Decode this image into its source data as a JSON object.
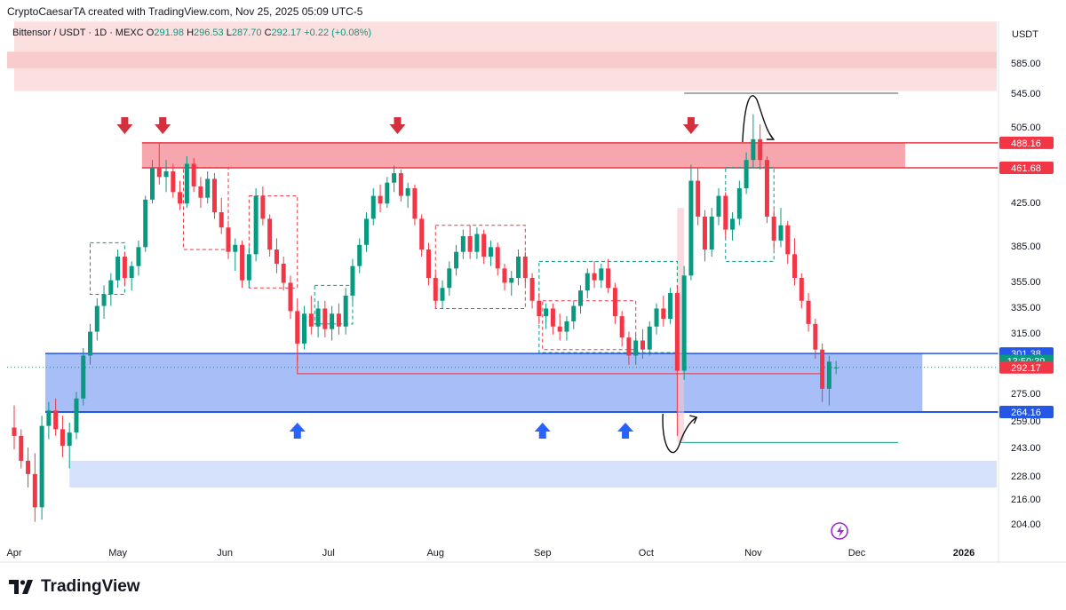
{
  "header": {
    "attribution": "CryptoCaesarTA created with TradingView.com, Nov 25, 2025 05:09 UTC-5"
  },
  "symbol_bar": {
    "title": "Bittensor / USDT · 1D · MEXC",
    "o_label": "O",
    "o_value": "291.98",
    "h_label": "H",
    "h_value": "296.53",
    "l_label": "L",
    "l_value": "287.70",
    "c_label": "C",
    "c_value": "292.17",
    "change": "+0.22 (+0.08%)"
  },
  "footer": {
    "brand": "TradingView"
  },
  "colors": {
    "up": "#089981",
    "down": "#f23645",
    "resistance_fill": "#f7a6ad",
    "support_fill": "#a7bef7",
    "arrow_down": "#d32f3d",
    "arrow_up": "#2962ff"
  },
  "chart_data": {
    "type": "candlestick",
    "currency": "USDT",
    "y_ticks": [
      "585.00",
      "545.00",
      "505.00",
      "425.00",
      "385.00",
      "355.00",
      "335.00",
      "315.00",
      "275.00",
      "259.00",
      "243.00",
      "228.00",
      "216.00",
      "204.00"
    ],
    "y_tick_values": [
      585,
      545,
      505,
      425,
      385,
      355,
      335,
      315,
      275,
      259,
      243,
      228,
      216,
      204
    ],
    "x_ticks": [
      "Apr",
      "May",
      "Jun",
      "Jul",
      "Aug",
      "Sep",
      "Oct",
      "Nov",
      "Dec",
      "2026"
    ],
    "x_tick_dates": [
      "2025-04-01",
      "2025-05-01",
      "2025-06-01",
      "2025-07-01",
      "2025-08-01",
      "2025-09-01",
      "2025-10-01",
      "2025-11-01",
      "2025-12-01",
      "2026-01-01"
    ],
    "price_labels": [
      {
        "text": "488.16",
        "value": 488.16,
        "kind": "resistance-top"
      },
      {
        "text": "461.68",
        "value": 461.68,
        "kind": "resistance-bottom"
      },
      {
        "text": "301.38",
        "value": 301.38,
        "kind": "support-top"
      },
      {
        "text": "13:50:39",
        "value": 296.4,
        "kind": "countdown"
      },
      {
        "text": "292.17",
        "value": 292.17,
        "kind": "last-price"
      },
      {
        "text": "264.16",
        "value": 264.16,
        "kind": "support-bottom"
      }
    ],
    "zones": [
      {
        "name": "resistance",
        "top": 488.16,
        "bottom": 461.68,
        "from": "2025-05-08",
        "to": "2025-12-15"
      },
      {
        "name": "support",
        "top": 301.38,
        "bottom": 264.16,
        "from": "2025-04-10",
        "to": "2025-12-20"
      },
      {
        "name": "lower-support",
        "top": 236,
        "bottom": 222,
        "from": "2025-04-17",
        "to": "2026-01-12"
      },
      {
        "name": "upper-supply",
        "top": 640,
        "bottom": 548,
        "from": "2025-04-01",
        "to": "2026-01-12"
      }
    ],
    "resistance_arrow_dates": [
      "2025-05-03",
      "2025-05-14",
      "2025-07-21",
      "2025-10-14"
    ],
    "support_arrow_dates": [
      "2025-06-22",
      "2025-09-01",
      "2025-09-25"
    ],
    "last_close": 292.17,
    "candles": [
      {
        "date": "2025-04-01",
        "o": 255,
        "h": 268,
        "l": 242,
        "c": 250
      },
      {
        "date": "2025-04-03",
        "o": 250,
        "h": 254,
        "l": 232,
        "c": 236
      },
      {
        "date": "2025-04-05",
        "o": 236,
        "h": 243,
        "l": 222,
        "c": 229
      },
      {
        "date": "2025-04-07",
        "o": 229,
        "h": 240,
        "l": 205,
        "c": 212
      },
      {
        "date": "2025-04-09",
        "o": 212,
        "h": 262,
        "l": 206,
        "c": 256
      },
      {
        "date": "2025-04-11",
        "o": 256,
        "h": 270,
        "l": 248,
        "c": 265
      },
      {
        "date": "2025-04-13",
        "o": 265,
        "h": 272,
        "l": 250,
        "c": 254
      },
      {
        "date": "2025-04-15",
        "o": 254,
        "h": 262,
        "l": 238,
        "c": 244
      },
      {
        "date": "2025-04-17",
        "o": 244,
        "h": 258,
        "l": 232,
        "c": 252
      },
      {
        "date": "2025-04-19",
        "o": 252,
        "h": 276,
        "l": 248,
        "c": 272
      },
      {
        "date": "2025-04-21",
        "o": 272,
        "h": 305,
        "l": 268,
        "c": 300
      },
      {
        "date": "2025-04-23",
        "o": 300,
        "h": 322,
        "l": 294,
        "c": 316
      },
      {
        "date": "2025-04-25",
        "o": 316,
        "h": 342,
        "l": 310,
        "c": 336
      },
      {
        "date": "2025-04-27",
        "o": 336,
        "h": 352,
        "l": 326,
        "c": 345
      },
      {
        "date": "2025-04-29",
        "o": 345,
        "h": 362,
        "l": 336,
        "c": 356
      },
      {
        "date": "2025-05-01",
        "o": 356,
        "h": 382,
        "l": 350,
        "c": 376
      },
      {
        "date": "2025-05-03",
        "o": 376,
        "h": 380,
        "l": 352,
        "c": 358
      },
      {
        "date": "2025-05-05",
        "o": 358,
        "h": 372,
        "l": 348,
        "c": 368
      },
      {
        "date": "2025-05-07",
        "o": 368,
        "h": 390,
        "l": 360,
        "c": 384
      },
      {
        "date": "2025-05-09",
        "o": 384,
        "h": 432,
        "l": 380,
        "c": 428
      },
      {
        "date": "2025-05-11",
        "o": 428,
        "h": 470,
        "l": 424,
        "c": 462
      },
      {
        "date": "2025-05-13",
        "o": 462,
        "h": 488,
        "l": 444,
        "c": 452
      },
      {
        "date": "2025-05-15",
        "o": 452,
        "h": 470,
        "l": 436,
        "c": 458
      },
      {
        "date": "2025-05-17",
        "o": 458,
        "h": 466,
        "l": 430,
        "c": 436
      },
      {
        "date": "2025-05-19",
        "o": 436,
        "h": 448,
        "l": 418,
        "c": 424
      },
      {
        "date": "2025-05-21",
        "o": 424,
        "h": 474,
        "l": 420,
        "c": 466
      },
      {
        "date": "2025-05-23",
        "o": 466,
        "h": 472,
        "l": 436,
        "c": 442
      },
      {
        "date": "2025-05-25",
        "o": 442,
        "h": 452,
        "l": 420,
        "c": 430
      },
      {
        "date": "2025-05-27",
        "o": 430,
        "h": 458,
        "l": 424,
        "c": 450
      },
      {
        "date": "2025-05-29",
        "o": 450,
        "h": 456,
        "l": 410,
        "c": 416
      },
      {
        "date": "2025-05-31",
        "o": 416,
        "h": 430,
        "l": 396,
        "c": 402
      },
      {
        "date": "2025-06-02",
        "o": 402,
        "h": 408,
        "l": 374,
        "c": 380
      },
      {
        "date": "2025-06-04",
        "o": 380,
        "h": 392,
        "l": 364,
        "c": 386
      },
      {
        "date": "2025-06-06",
        "o": 386,
        "h": 390,
        "l": 350,
        "c": 356
      },
      {
        "date": "2025-06-08",
        "o": 356,
        "h": 384,
        "l": 350,
        "c": 378
      },
      {
        "date": "2025-06-10",
        "o": 378,
        "h": 440,
        "l": 372,
        "c": 432
      },
      {
        "date": "2025-06-12",
        "o": 432,
        "h": 442,
        "l": 404,
        "c": 410
      },
      {
        "date": "2025-06-14",
        "o": 410,
        "h": 414,
        "l": 376,
        "c": 382
      },
      {
        "date": "2025-06-16",
        "o": 382,
        "h": 392,
        "l": 362,
        "c": 370
      },
      {
        "date": "2025-06-18",
        "o": 370,
        "h": 376,
        "l": 348,
        "c": 354
      },
      {
        "date": "2025-06-20",
        "o": 354,
        "h": 360,
        "l": 326,
        "c": 332
      },
      {
        "date": "2025-06-22",
        "o": 332,
        "h": 342,
        "l": 296,
        "c": 308
      },
      {
        "date": "2025-06-24",
        "o": 308,
        "h": 336,
        "l": 304,
        "c": 330
      },
      {
        "date": "2025-06-26",
        "o": 330,
        "h": 344,
        "l": 314,
        "c": 320
      },
      {
        "date": "2025-06-28",
        "o": 320,
        "h": 340,
        "l": 312,
        "c": 334
      },
      {
        "date": "2025-06-30",
        "o": 334,
        "h": 340,
        "l": 312,
        "c": 318
      },
      {
        "date": "2025-07-02",
        "o": 318,
        "h": 336,
        "l": 310,
        "c": 330
      },
      {
        "date": "2025-07-04",
        "o": 330,
        "h": 338,
        "l": 314,
        "c": 320
      },
      {
        "date": "2025-07-06",
        "o": 320,
        "h": 350,
        "l": 314,
        "c": 344
      },
      {
        "date": "2025-07-08",
        "o": 344,
        "h": 374,
        "l": 338,
        "c": 368
      },
      {
        "date": "2025-07-10",
        "o": 368,
        "h": 392,
        "l": 362,
        "c": 386
      },
      {
        "date": "2025-07-12",
        "o": 386,
        "h": 416,
        "l": 380,
        "c": 410
      },
      {
        "date": "2025-07-14",
        "o": 410,
        "h": 440,
        "l": 404,
        "c": 432
      },
      {
        "date": "2025-07-16",
        "o": 432,
        "h": 444,
        "l": 416,
        "c": 424
      },
      {
        "date": "2025-07-18",
        "o": 424,
        "h": 452,
        "l": 420,
        "c": 446
      },
      {
        "date": "2025-07-20",
        "o": 446,
        "h": 464,
        "l": 436,
        "c": 456
      },
      {
        "date": "2025-07-22",
        "o": 456,
        "h": 460,
        "l": 426,
        "c": 432
      },
      {
        "date": "2025-07-24",
        "o": 432,
        "h": 446,
        "l": 420,
        "c": 440
      },
      {
        "date": "2025-07-26",
        "o": 440,
        "h": 444,
        "l": 404,
        "c": 410
      },
      {
        "date": "2025-07-28",
        "o": 410,
        "h": 414,
        "l": 376,
        "c": 382
      },
      {
        "date": "2025-07-30",
        "o": 382,
        "h": 388,
        "l": 352,
        "c": 358
      },
      {
        "date": "2025-08-01",
        "o": 358,
        "h": 362,
        "l": 334,
        "c": 340
      },
      {
        "date": "2025-08-03",
        "o": 340,
        "h": 356,
        "l": 334,
        "c": 350
      },
      {
        "date": "2025-08-05",
        "o": 350,
        "h": 372,
        "l": 344,
        "c": 366
      },
      {
        "date": "2025-08-07",
        "o": 366,
        "h": 386,
        "l": 360,
        "c": 380
      },
      {
        "date": "2025-08-09",
        "o": 380,
        "h": 400,
        "l": 374,
        "c": 394
      },
      {
        "date": "2025-08-11",
        "o": 394,
        "h": 404,
        "l": 374,
        "c": 380
      },
      {
        "date": "2025-08-13",
        "o": 380,
        "h": 402,
        "l": 374,
        "c": 396
      },
      {
        "date": "2025-08-15",
        "o": 396,
        "h": 400,
        "l": 370,
        "c": 376
      },
      {
        "date": "2025-08-17",
        "o": 376,
        "h": 390,
        "l": 368,
        "c": 384
      },
      {
        "date": "2025-08-19",
        "o": 384,
        "h": 388,
        "l": 360,
        "c": 366
      },
      {
        "date": "2025-08-21",
        "o": 366,
        "h": 370,
        "l": 348,
        "c": 354
      },
      {
        "date": "2025-08-23",
        "o": 354,
        "h": 364,
        "l": 344,
        "c": 358
      },
      {
        "date": "2025-08-25",
        "o": 358,
        "h": 382,
        "l": 352,
        "c": 376
      },
      {
        "date": "2025-08-27",
        "o": 376,
        "h": 380,
        "l": 352,
        "c": 358
      },
      {
        "date": "2025-08-29",
        "o": 358,
        "h": 362,
        "l": 334,
        "c": 340
      },
      {
        "date": "2025-08-31",
        "o": 340,
        "h": 346,
        "l": 322,
        "c": 328
      },
      {
        "date": "2025-09-02",
        "o": 328,
        "h": 338,
        "l": 318,
        "c": 334
      },
      {
        "date": "2025-09-04",
        "o": 334,
        "h": 338,
        "l": 314,
        "c": 320
      },
      {
        "date": "2025-09-06",
        "o": 320,
        "h": 330,
        "l": 310,
        "c": 316
      },
      {
        "date": "2025-09-08",
        "o": 316,
        "h": 328,
        "l": 310,
        "c": 324
      },
      {
        "date": "2025-09-10",
        "o": 324,
        "h": 340,
        "l": 318,
        "c": 336
      },
      {
        "date": "2025-09-12",
        "o": 336,
        "h": 352,
        "l": 330,
        "c": 348
      },
      {
        "date": "2025-09-14",
        "o": 348,
        "h": 366,
        "l": 342,
        "c": 362
      },
      {
        "date": "2025-09-16",
        "o": 362,
        "h": 372,
        "l": 350,
        "c": 356
      },
      {
        "date": "2025-09-18",
        "o": 356,
        "h": 370,
        "l": 350,
        "c": 366
      },
      {
        "date": "2025-09-20",
        "o": 366,
        "h": 374,
        "l": 346,
        "c": 350
      },
      {
        "date": "2025-09-22",
        "o": 350,
        "h": 354,
        "l": 322,
        "c": 328
      },
      {
        "date": "2025-09-24",
        "o": 328,
        "h": 332,
        "l": 306,
        "c": 312
      },
      {
        "date": "2025-09-26",
        "o": 312,
        "h": 316,
        "l": 294,
        "c": 300
      },
      {
        "date": "2025-09-28",
        "o": 300,
        "h": 314,
        "l": 294,
        "c": 310
      },
      {
        "date": "2025-09-30",
        "o": 310,
        "h": 318,
        "l": 298,
        "c": 304
      },
      {
        "date": "2025-10-02",
        "o": 304,
        "h": 324,
        "l": 300,
        "c": 320
      },
      {
        "date": "2025-10-04",
        "o": 320,
        "h": 338,
        "l": 314,
        "c": 334
      },
      {
        "date": "2025-10-06",
        "o": 334,
        "h": 344,
        "l": 320,
        "c": 326
      },
      {
        "date": "2025-10-08",
        "o": 326,
        "h": 350,
        "l": 322,
        "c": 346
      },
      {
        "date": "2025-10-10",
        "o": 346,
        "h": 352,
        "l": 250,
        "c": 290
      },
      {
        "date": "2025-10-12",
        "o": 290,
        "h": 368,
        "l": 284,
        "c": 360
      },
      {
        "date": "2025-10-14",
        "o": 360,
        "h": 465,
        "l": 356,
        "c": 448
      },
      {
        "date": "2025-10-16",
        "o": 448,
        "h": 462,
        "l": 404,
        "c": 412
      },
      {
        "date": "2025-10-18",
        "o": 412,
        "h": 418,
        "l": 372,
        "c": 382
      },
      {
        "date": "2025-10-20",
        "o": 382,
        "h": 420,
        "l": 376,
        "c": 412
      },
      {
        "date": "2025-10-22",
        "o": 412,
        "h": 440,
        "l": 404,
        "c": 432
      },
      {
        "date": "2025-10-24",
        "o": 432,
        "h": 436,
        "l": 392,
        "c": 400
      },
      {
        "date": "2025-10-26",
        "o": 400,
        "h": 416,
        "l": 390,
        "c": 410
      },
      {
        "date": "2025-10-28",
        "o": 410,
        "h": 448,
        "l": 404,
        "c": 440
      },
      {
        "date": "2025-10-30",
        "o": 440,
        "h": 478,
        "l": 434,
        "c": 470
      },
      {
        "date": "2025-11-01",
        "o": 470,
        "h": 520,
        "l": 462,
        "c": 492
      },
      {
        "date": "2025-11-03",
        "o": 492,
        "h": 508,
        "l": 460,
        "c": 470
      },
      {
        "date": "2025-11-05",
        "o": 470,
        "h": 474,
        "l": 406,
        "c": 412
      },
      {
        "date": "2025-11-07",
        "o": 412,
        "h": 418,
        "l": 382,
        "c": 390
      },
      {
        "date": "2025-11-09",
        "o": 390,
        "h": 420,
        "l": 384,
        "c": 404
      },
      {
        "date": "2025-11-11",
        "o": 404,
        "h": 408,
        "l": 370,
        "c": 378
      },
      {
        "date": "2025-11-13",
        "o": 378,
        "h": 392,
        "l": 352,
        "c": 358
      },
      {
        "date": "2025-11-15",
        "o": 358,
        "h": 362,
        "l": 334,
        "c": 340
      },
      {
        "date": "2025-11-17",
        "o": 340,
        "h": 346,
        "l": 316,
        "c": 322
      },
      {
        "date": "2025-11-19",
        "o": 322,
        "h": 326,
        "l": 298,
        "c": 304
      },
      {
        "date": "2025-11-21",
        "o": 304,
        "h": 308,
        "l": 270,
        "c": 278
      },
      {
        "date": "2025-11-23",
        "o": 278,
        "h": 300,
        "l": 268,
        "c": 296
      },
      {
        "date": "2025-11-25",
        "o": 291.98,
        "h": 296.53,
        "l": 287.7,
        "c": 292.17
      }
    ]
  }
}
